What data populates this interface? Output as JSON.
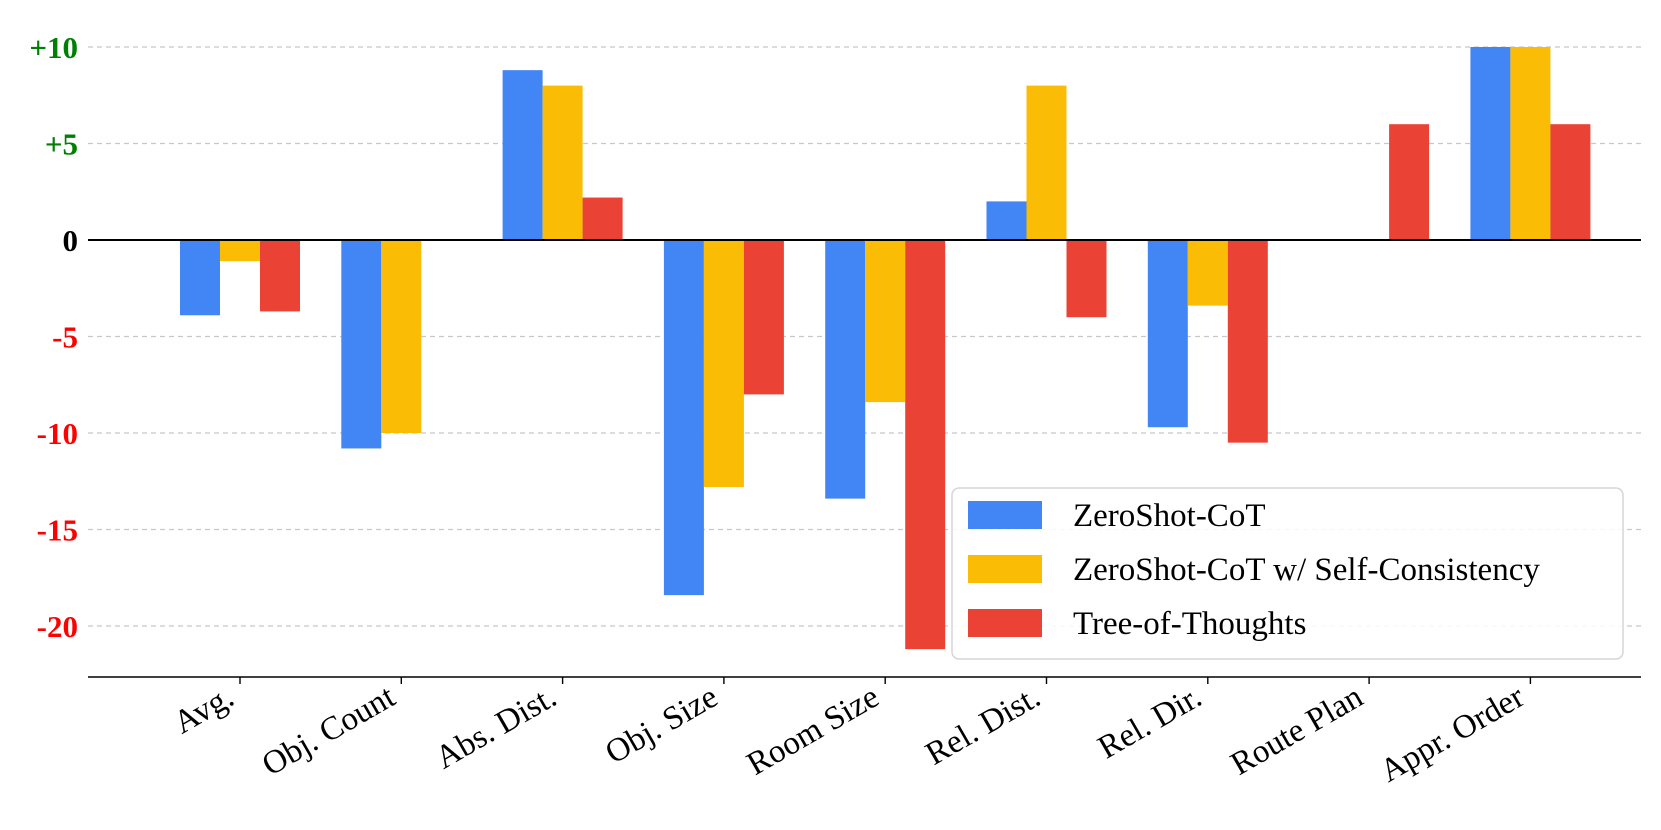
{
  "chart_data": {
    "type": "bar",
    "title": "",
    "xlabel": "",
    "ylabel": "",
    "ylim": [
      -22.8,
      10.5
    ],
    "grid": true,
    "legend_position": "bottom-right",
    "categories": [
      "Avg.",
      "Obj. Count",
      "Abs. Dist.",
      "Obj. Size",
      "Room Size",
      "Rel. Dist.",
      "Rel. Dir.",
      "Route Plan",
      "Appr. Order"
    ],
    "yticks": [
      {
        "value": 10,
        "label": "+10",
        "color": "#008000"
      },
      {
        "value": 5,
        "label": "+5",
        "color": "#008000"
      },
      {
        "value": 0,
        "label": "0",
        "color": "#000000"
      },
      {
        "value": -5,
        "label": "-5",
        "color": "#ff0000"
      },
      {
        "value": -10,
        "label": "-10",
        "color": "#ff0000"
      },
      {
        "value": -15,
        "label": "-15",
        "color": "#ff0000"
      },
      {
        "value": -20,
        "label": "-20",
        "color": "#ff0000"
      }
    ],
    "series": [
      {
        "name": "ZeroShot-CoT",
        "color": "#4285F4",
        "values": [
          -3.9,
          -10.8,
          8.8,
          -18.4,
          -13.4,
          2.0,
          -9.7,
          0,
          10.0
        ]
      },
      {
        "name": "ZeroShot-CoT w/ Self-Consistency",
        "color": "#FBBC05",
        "values": [
          -1.1,
          -10.0,
          8.0,
          -12.8,
          -8.4,
          8.0,
          -3.4,
          0,
          10.0
        ]
      },
      {
        "name": "Tree-of-Thoughts",
        "color": "#EA4335",
        "values": [
          -3.7,
          0,
          2.2,
          -8.0,
          -21.2,
          -4.0,
          -10.5,
          6.0,
          6.0
        ]
      }
    ]
  }
}
